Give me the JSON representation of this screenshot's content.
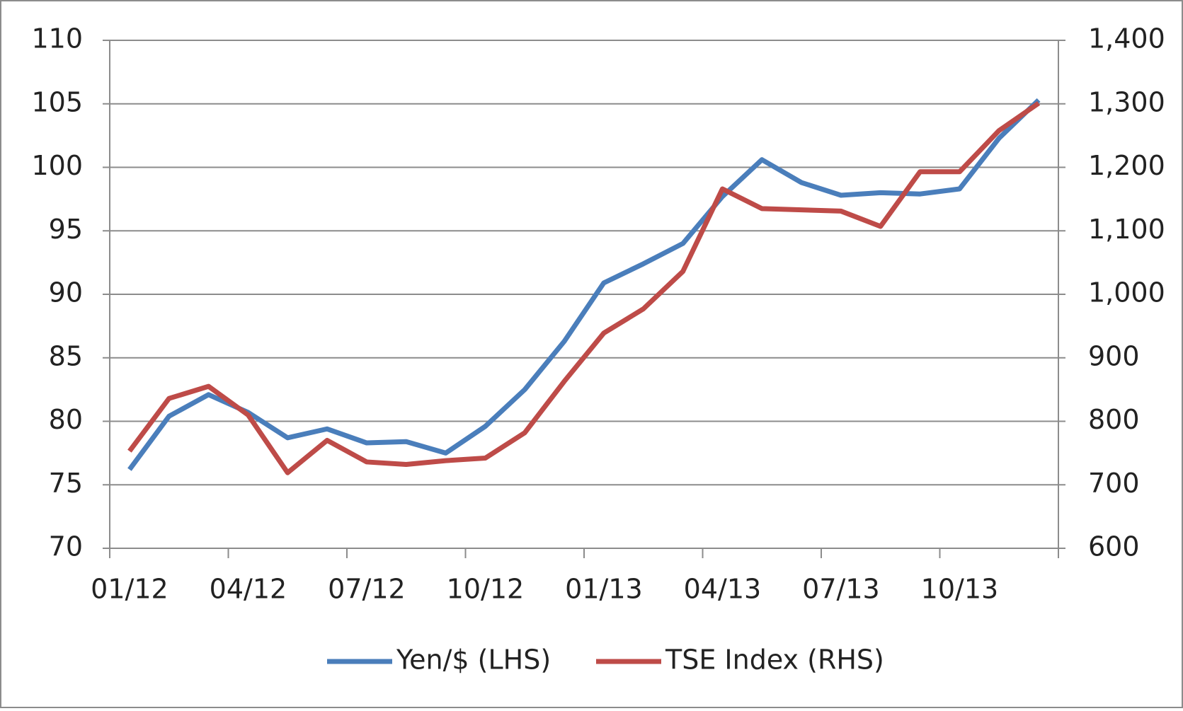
{
  "chart_data": {
    "type": "line",
    "categories": [
      "01/12",
      null,
      null,
      "04/12",
      null,
      null,
      "07/12",
      null,
      null,
      "10/12",
      null,
      null,
      "01/13",
      null,
      null,
      "04/13",
      null,
      null,
      "07/13",
      null,
      null,
      "10/13",
      null,
      null
    ],
    "series": [
      {
        "name": "Yen/$ (LHS)",
        "color": "#4a7ebb",
        "axis": "y",
        "values": [
          76.2,
          80.4,
          82.1,
          80.7,
          78.7,
          79.4,
          78.3,
          78.4,
          77.5,
          79.6,
          82.5,
          86.3,
          90.9,
          92.4,
          94.0,
          97.7,
          100.6,
          98.8,
          97.8,
          98.0,
          97.9,
          98.3,
          102.3,
          105.3
        ]
      },
      {
        "name": "TSE Index (RHS)",
        "color": "#be4b48",
        "axis": "y2",
        "values": [
          753,
          836,
          855,
          810,
          719,
          770,
          736,
          732,
          738,
          742,
          782,
          863,
          939,
          977,
          1036,
          1166,
          1135,
          1133,
          1131,
          1107,
          1193,
          1193,
          1258,
          1301
        ]
      }
    ],
    "ylim": [
      70,
      110
    ],
    "yticks": [
      70,
      75,
      80,
      85,
      90,
      95,
      100,
      105,
      110
    ],
    "y2lim": [
      600,
      1400
    ],
    "y2ticks": [
      600,
      700,
      800,
      900,
      {
        "value": 1000,
        "label": "1,000"
      },
      {
        "value": 1100,
        "label": "1,100"
      },
      {
        "value": 1200,
        "label": "1,200"
      },
      {
        "value": 1300,
        "label": "1,300"
      },
      {
        "value": 1400,
        "label": "1,400"
      }
    ],
    "grid": true,
    "legend": "bottom"
  }
}
